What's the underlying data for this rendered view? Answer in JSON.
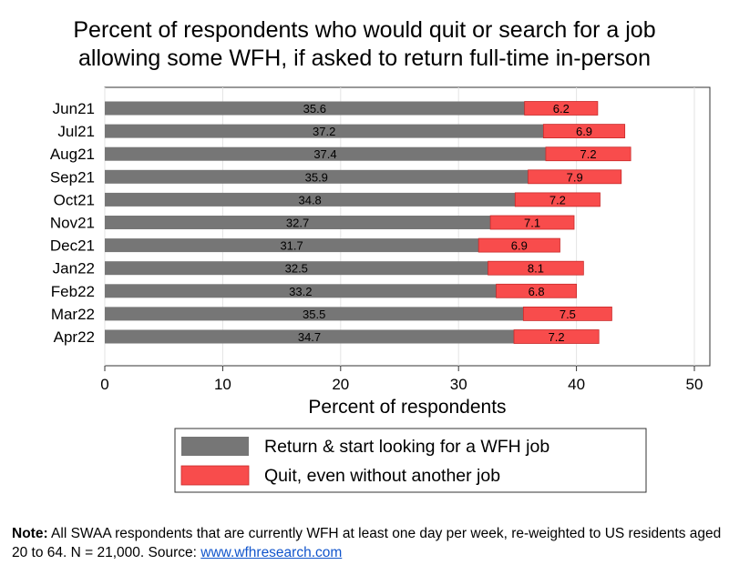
{
  "chart_data": {
    "type": "bar",
    "orientation": "horizontal",
    "stacked": true,
    "title": "Percent of respondents who would quit or search for a job allowing some WFH, if asked to return full-time in-person",
    "title_lines": [
      "Percent of respondents who would quit or search for a job",
      "allowing some WFH, if asked to return full-time in-person"
    ],
    "xlabel": "Percent of respondents",
    "ylabel": "",
    "xlim": [
      0,
      50
    ],
    "xticks": [
      0,
      10,
      20,
      30,
      40,
      50
    ],
    "grid": true,
    "legend_position": "bottom",
    "categories": [
      "Jun21",
      "Jul21",
      "Aug21",
      "Sep21",
      "Oct21",
      "Nov21",
      "Dec21",
      "Jan22",
      "Feb22",
      "Mar22",
      "Apr22"
    ],
    "series": [
      {
        "name": "Return & start looking for a WFH job",
        "color": "#767676",
        "values": [
          35.6,
          37.2,
          37.4,
          35.9,
          34.8,
          32.7,
          31.7,
          32.5,
          33.2,
          35.5,
          34.7
        ]
      },
      {
        "name": "Quit, even without another job",
        "color": "#f84c4c",
        "values": [
          6.2,
          6.9,
          7.2,
          7.9,
          7.2,
          7.1,
          6.9,
          8.1,
          6.8,
          7.5,
          7.2
        ]
      }
    ]
  },
  "note": {
    "label": "Note:",
    "text": " All SWAA respondents that are currently WFH at least one day per week, re-weighted to US residents aged 20 to 64. N = 21,000. Source: ",
    "link_text": "www.wfhresearch.com"
  }
}
